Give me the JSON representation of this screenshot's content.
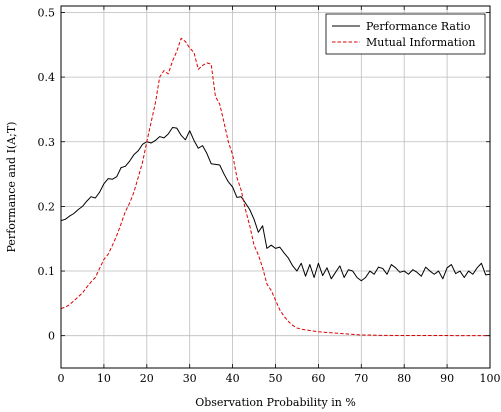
{
  "chart_data": {
    "type": "line",
    "xlabel": "Observation Probability in %",
    "ylabel": "Performance and I(A;T)",
    "xlim": [
      0,
      100
    ],
    "ylim": [
      -0.05,
      0.51
    ],
    "xticks": [
      0,
      10,
      20,
      30,
      40,
      50,
      60,
      70,
      80,
      90,
      100
    ],
    "yticks": [
      0,
      0.1,
      0.2,
      0.3,
      0.4,
      0.5
    ],
    "xtick_labels": [
      "0",
      "10",
      "20",
      "30",
      "40",
      "50",
      "60",
      "70",
      "80",
      "90",
      "100"
    ],
    "ytick_labels": [
      "0",
      "0.1",
      "0.2",
      "0.3",
      "0.4",
      "0.5"
    ],
    "grid": true,
    "legend_position": "top-right",
    "series": [
      {
        "name": "Performance Ratio",
        "color": "#000000",
        "dash": "solid",
        "x": [
          0,
          1,
          2,
          3,
          4,
          5,
          6,
          7,
          8,
          9,
          10,
          11,
          12,
          13,
          14,
          15,
          16,
          17,
          18,
          19,
          20,
          21,
          22,
          23,
          24,
          25,
          26,
          27,
          28,
          29,
          30,
          31,
          32,
          33,
          34,
          35,
          36,
          37,
          38,
          39,
          40,
          41,
          42,
          43,
          44,
          45,
          46,
          47,
          48,
          49,
          50,
          51,
          52,
          53,
          54,
          55,
          56,
          57,
          58,
          59,
          60,
          61,
          62,
          63,
          64,
          65,
          66,
          67,
          68,
          69,
          70,
          71,
          72,
          73,
          74,
          75,
          76,
          77,
          78,
          79,
          80,
          81,
          82,
          83,
          84,
          85,
          86,
          87,
          88,
          89,
          90,
          91,
          92,
          93,
          94,
          95,
          96,
          97,
          98,
          99,
          100
        ],
        "y": [
          0.178,
          0.18,
          0.185,
          0.189,
          0.195,
          0.2,
          0.208,
          0.215,
          0.213,
          0.222,
          0.235,
          0.243,
          0.242,
          0.246,
          0.26,
          0.262,
          0.27,
          0.28,
          0.286,
          0.296,
          0.3,
          0.298,
          0.302,
          0.308,
          0.306,
          0.312,
          0.322,
          0.321,
          0.31,
          0.303,
          0.317,
          0.302,
          0.29,
          0.294,
          0.282,
          0.266,
          0.265,
          0.264,
          0.25,
          0.238,
          0.23,
          0.214,
          0.215,
          0.205,
          0.195,
          0.18,
          0.16,
          0.17,
          0.135,
          0.14,
          0.135,
          0.137,
          0.128,
          0.12,
          0.108,
          0.1,
          0.112,
          0.092,
          0.11,
          0.09,
          0.112,
          0.093,
          0.105,
          0.088,
          0.098,
          0.108,
          0.09,
          0.102,
          0.1,
          0.09,
          0.085,
          0.09,
          0.1,
          0.095,
          0.106,
          0.104,
          0.095,
          0.11,
          0.105,
          0.098,
          0.1,
          0.095,
          0.102,
          0.098,
          0.092,
          0.106,
          0.1,
          0.095,
          0.1,
          0.088,
          0.105,
          0.11,
          0.096,
          0.1,
          0.09,
          0.1,
          0.095,
          0.105,
          0.112,
          0.094,
          0.095
        ]
      },
      {
        "name": "Mutual Information",
        "color": "#dd0000",
        "dash": "dashed",
        "x": [
          0,
          1,
          2,
          3,
          4,
          5,
          6,
          7,
          8,
          9,
          10,
          11,
          12,
          13,
          14,
          15,
          16,
          17,
          18,
          19,
          20,
          21,
          22,
          23,
          24,
          25,
          26,
          27,
          28,
          29,
          30,
          31,
          32,
          33,
          34,
          35,
          36,
          37,
          38,
          39,
          40,
          41,
          42,
          43,
          44,
          45,
          46,
          47,
          48,
          49,
          50,
          51,
          52,
          53,
          54,
          55,
          56,
          57,
          58,
          59,
          60,
          62,
          64,
          66,
          68,
          70,
          72,
          74,
          76,
          78,
          80,
          85,
          90,
          95,
          100
        ],
        "y": [
          0.042,
          0.044,
          0.048,
          0.054,
          0.06,
          0.066,
          0.075,
          0.083,
          0.09,
          0.104,
          0.118,
          0.126,
          0.14,
          0.155,
          0.173,
          0.192,
          0.205,
          0.222,
          0.245,
          0.268,
          0.3,
          0.33,
          0.36,
          0.4,
          0.41,
          0.405,
          0.425,
          0.44,
          0.46,
          0.455,
          0.445,
          0.438,
          0.412,
          0.418,
          0.422,
          0.42,
          0.37,
          0.358,
          0.33,
          0.3,
          0.28,
          0.245,
          0.225,
          0.195,
          0.17,
          0.14,
          0.125,
          0.105,
          0.08,
          0.07,
          0.055,
          0.04,
          0.03,
          0.022,
          0.016,
          0.012,
          0.01,
          0.009,
          0.008,
          0.007,
          0.006,
          0.005,
          0.004,
          0.003,
          0.002,
          0.001,
          0.001,
          0.0005,
          0.0005,
          0.0003,
          0.0003,
          0.0002,
          0.0002,
          0.0001,
          0.0001
        ]
      }
    ]
  }
}
